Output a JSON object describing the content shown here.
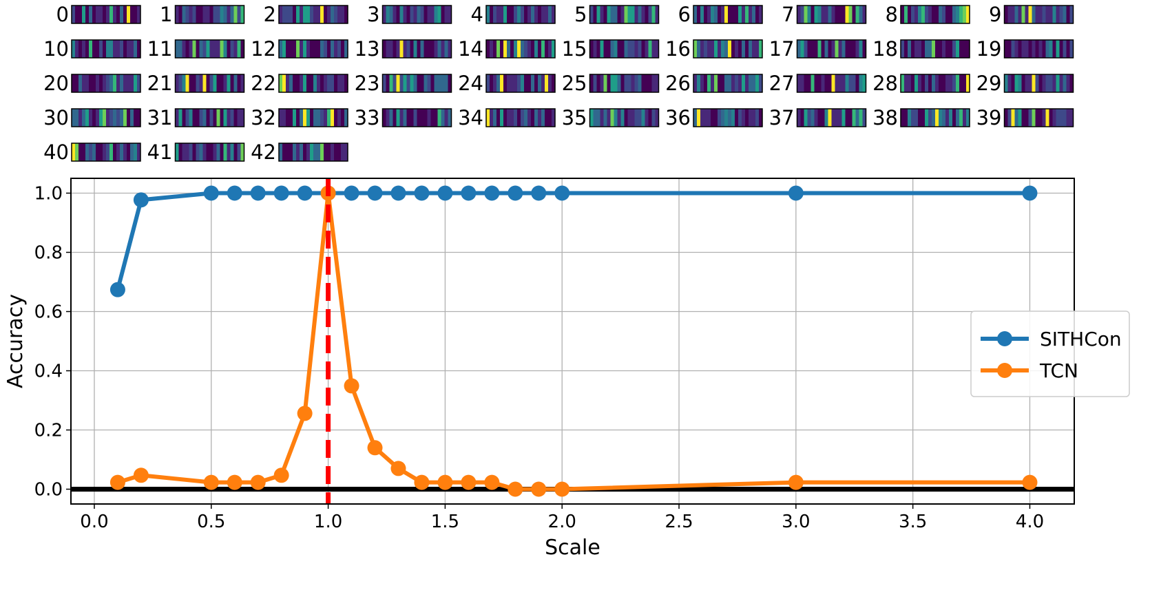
{
  "patterns": {
    "labels": [
      "0",
      "1",
      "2",
      "3",
      "4",
      "5",
      "6",
      "7",
      "8",
      "9",
      "10",
      "11",
      "12",
      "13",
      "14",
      "15",
      "16",
      "17",
      "18",
      "19",
      "20",
      "21",
      "22",
      "23",
      "24",
      "25",
      "26",
      "27",
      "28",
      "29",
      "30",
      "31",
      "32",
      "33",
      "34",
      "35",
      "36",
      "37",
      "38",
      "39",
      "40",
      "41",
      "42"
    ],
    "colormap": "viridis",
    "bar_count": 20
  },
  "chart_data": {
    "type": "line",
    "title": "",
    "xlabel": "Scale",
    "ylabel": "Accuracy",
    "xlim": [
      -0.1,
      4.19
    ],
    "ylim": [
      -0.05,
      1.05
    ],
    "xticks": [
      0.0,
      0.5,
      1.0,
      1.5,
      2.0,
      2.5,
      3.0,
      3.5,
      4.0
    ],
    "xtick_labels": [
      "0.0",
      "0.5",
      "1.0",
      "1.5",
      "2.0",
      "2.5",
      "3.0",
      "3.5",
      "4.0"
    ],
    "yticks": [
      0.0,
      0.2,
      0.4,
      0.6,
      0.8,
      1.0
    ],
    "ytick_labels": [
      "0.0",
      "0.2",
      "0.4",
      "0.6",
      "0.8",
      "1.0"
    ],
    "grid": true,
    "legend_position": "center-right",
    "reference_lines": [
      {
        "orientation": "vertical",
        "value": 1.0,
        "style": "dashed",
        "color": "#ff0000"
      },
      {
        "orientation": "horizontal",
        "value": 0.0,
        "style": "solid",
        "color": "#000000"
      }
    ],
    "series": [
      {
        "name": "SITHCon",
        "color": "#1f77b4",
        "x": [
          0.1,
          0.2,
          0.5,
          0.6,
          0.7,
          0.8,
          0.9,
          1.0,
          1.1,
          1.2,
          1.3,
          1.4,
          1.5,
          1.6,
          1.7,
          1.8,
          1.9,
          2.0,
          3.0,
          4.0
        ],
        "y": [
          0.674,
          0.977,
          1.0,
          1.0,
          1.0,
          1.0,
          1.0,
          1.0,
          1.0,
          1.0,
          1.0,
          1.0,
          1.0,
          1.0,
          1.0,
          1.0,
          1.0,
          1.0,
          1.0,
          1.0
        ]
      },
      {
        "name": "TCN",
        "color": "#ff7f0e",
        "x": [
          0.1,
          0.2,
          0.5,
          0.6,
          0.7,
          0.8,
          0.9,
          1.0,
          1.1,
          1.2,
          1.3,
          1.4,
          1.5,
          1.6,
          1.7,
          1.8,
          1.9,
          2.0,
          3.0,
          4.0
        ],
        "y": [
          0.023,
          0.047,
          0.023,
          0.023,
          0.023,
          0.047,
          0.256,
          1.0,
          0.349,
          0.14,
          0.07,
          0.023,
          0.023,
          0.023,
          0.023,
          0.0,
          0.0,
          0.0,
          0.023,
          0.023
        ]
      }
    ]
  }
}
